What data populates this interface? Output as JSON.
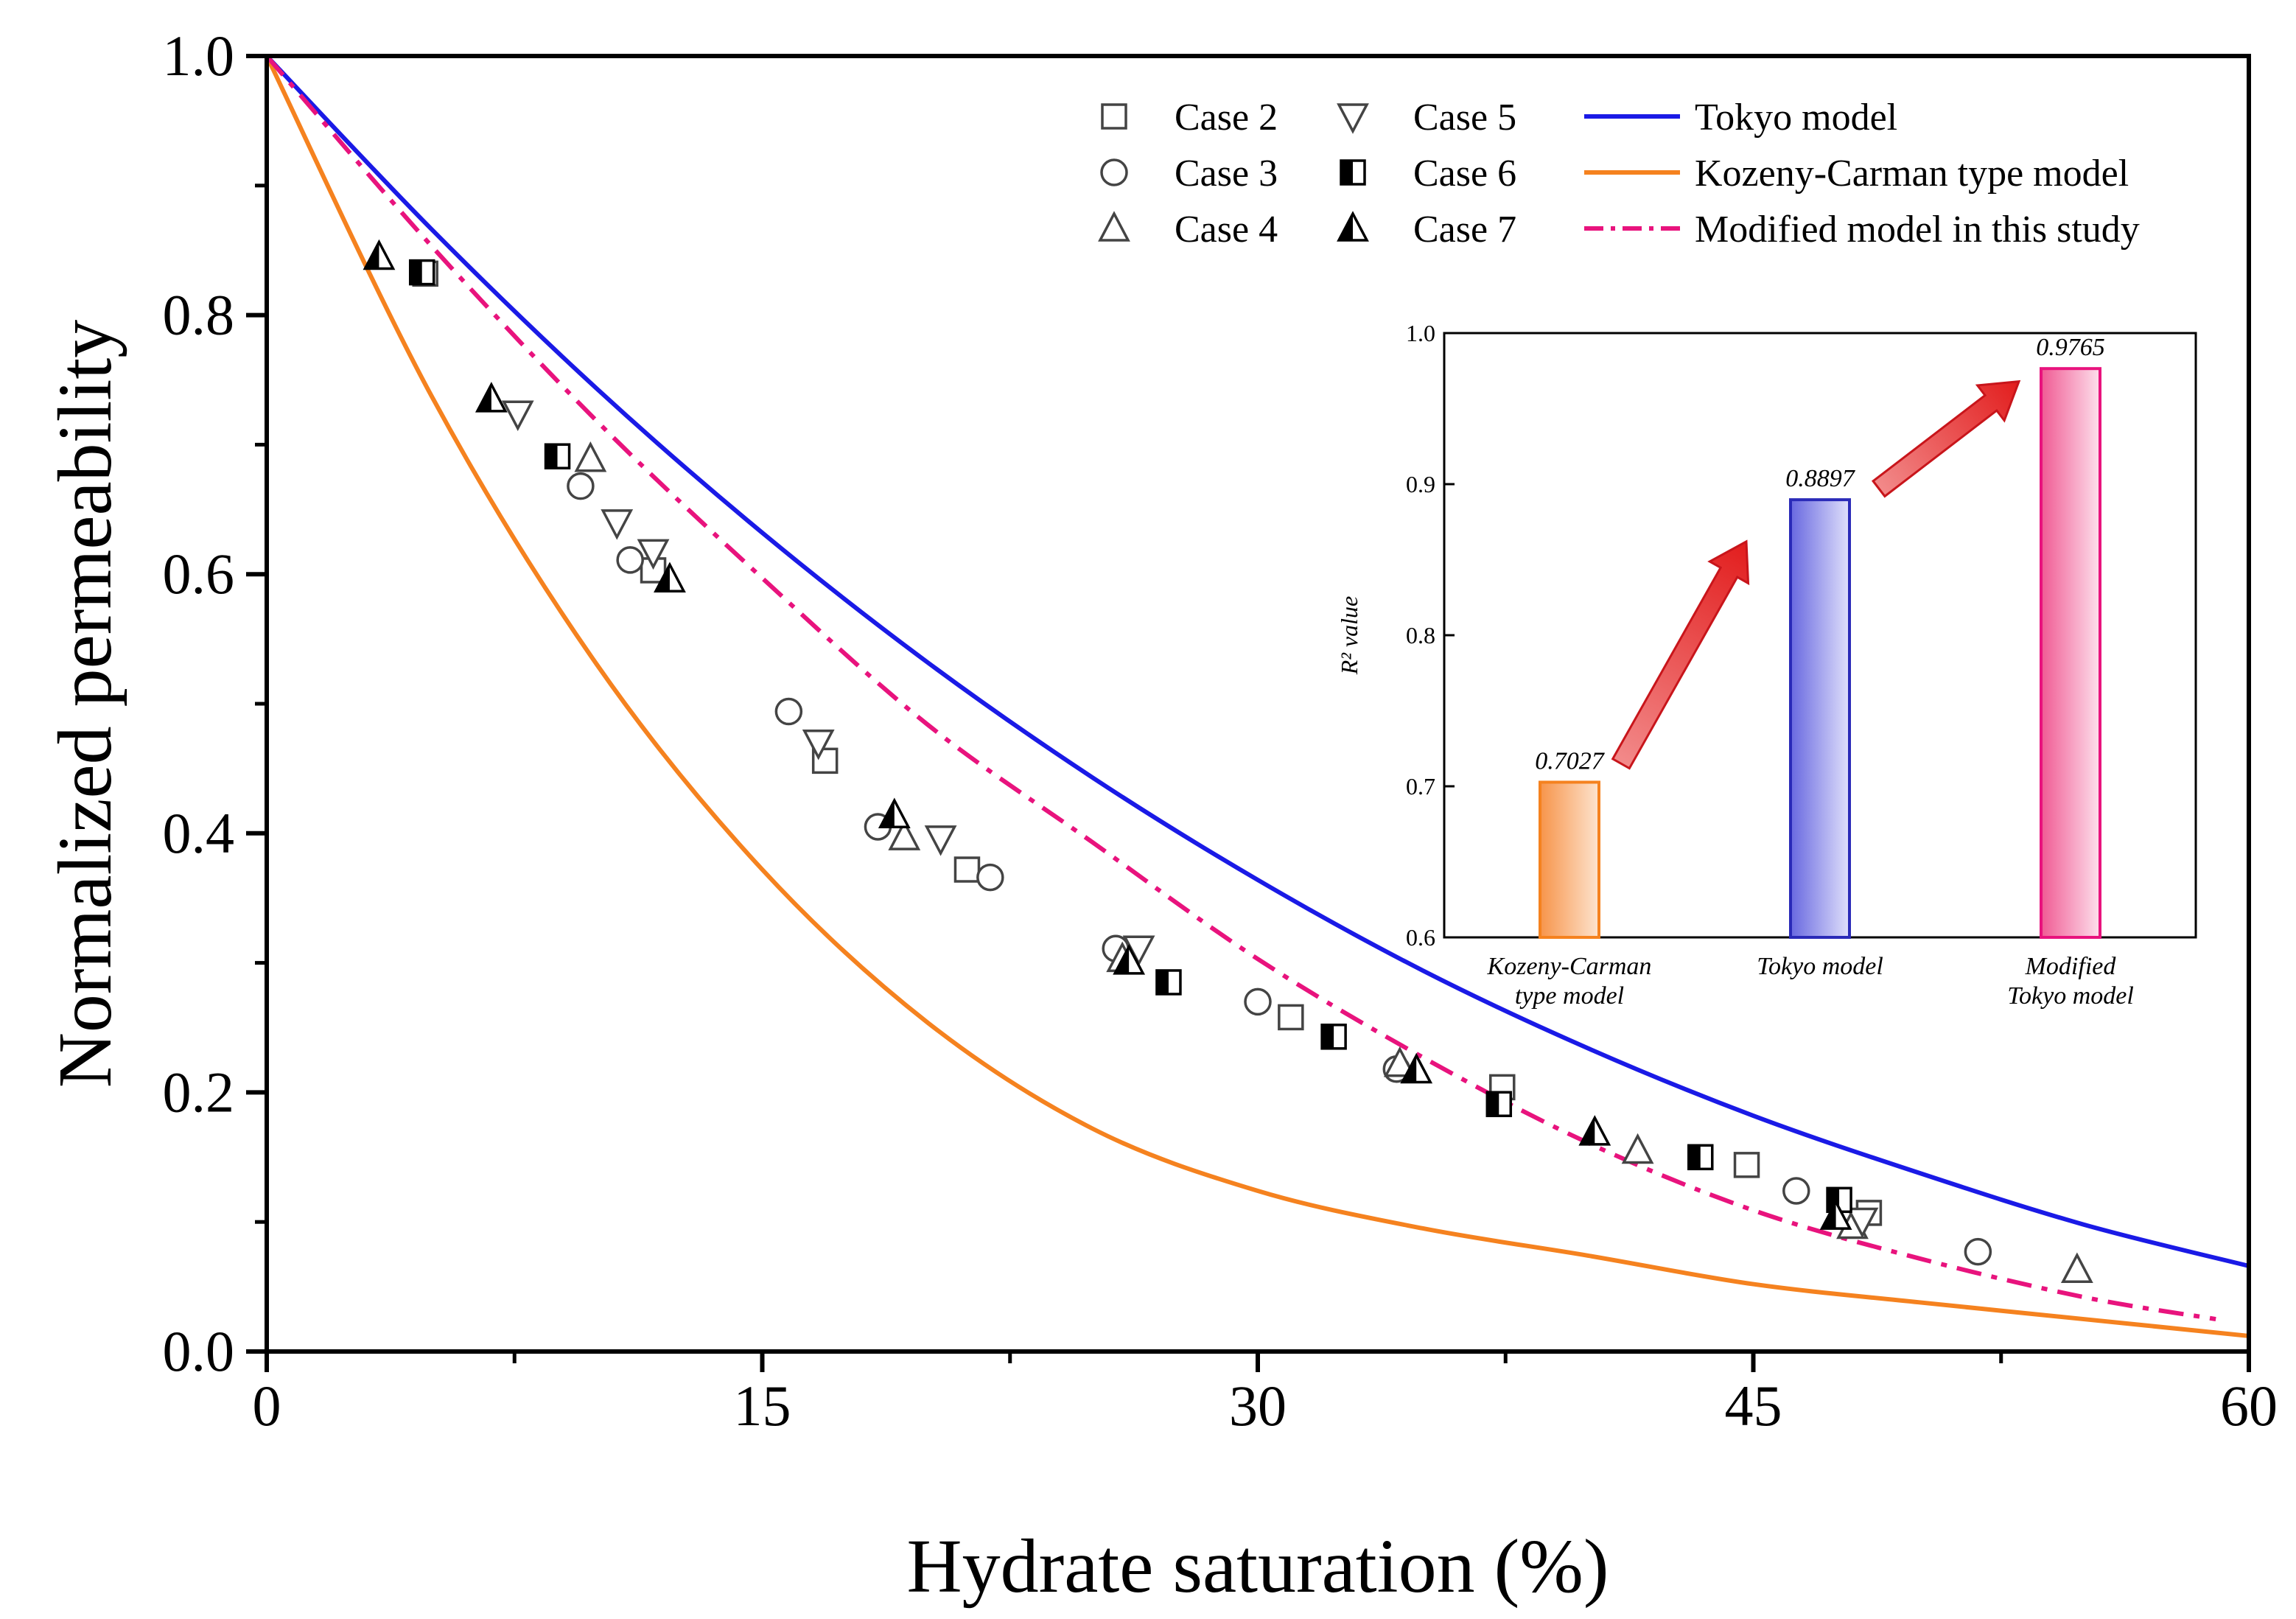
{
  "chart_data": [
    {
      "type": "scatter",
      "xlabel": "Hydrate saturation (%)",
      "ylabel": "Normalized permeability",
      "xlim": [
        0,
        60
      ],
      "ylim": [
        0,
        1.0
      ],
      "xticks": [
        "0",
        "15",
        "30",
        "45",
        "60"
      ],
      "yticks": [
        "0.0",
        "0.2",
        "0.4",
        "0.6",
        "0.8",
        "1.0"
      ],
      "series": [
        {
          "name": "Case 2",
          "marker": "square-open",
          "color": "#444444",
          "points": [
            [
              4.8,
              0.832
            ],
            [
              11.7,
              0.603
            ],
            [
              16.9,
              0.456
            ],
            [
              21.2,
              0.372
            ],
            [
              26.0,
              0.31
            ],
            [
              31.0,
              0.258
            ],
            [
              37.4,
              0.204
            ],
            [
              44.8,
              0.144
            ],
            [
              48.5,
              0.107
            ]
          ]
        },
        {
          "name": "Case 3",
          "marker": "circle-open",
          "color": "#444444",
          "points": [
            [
              9.5,
              0.668
            ],
            [
              11.0,
              0.611
            ],
            [
              15.8,
              0.494
            ],
            [
              18.5,
              0.405
            ],
            [
              21.9,
              0.366
            ],
            [
              25.7,
              0.311
            ],
            [
              30.0,
              0.27
            ],
            [
              34.2,
              0.218
            ],
            [
              46.3,
              0.124
            ],
            [
              51.8,
              0.077
            ]
          ]
        },
        {
          "name": "Case 4",
          "marker": "triangle-open",
          "color": "#444444",
          "points": [
            [
              9.8,
              0.689
            ],
            [
              19.3,
              0.397
            ],
            [
              25.9,
              0.303
            ],
            [
              34.3,
              0.222
            ],
            [
              41.5,
              0.155
            ],
            [
              48.0,
              0.097
            ],
            [
              54.8,
              0.063
            ]
          ]
        },
        {
          "name": "Case 5",
          "marker": "triangle-down-open",
          "color": "#444444",
          "points": [
            [
              7.6,
              0.724
            ],
            [
              10.6,
              0.64
            ],
            [
              11.7,
              0.617
            ],
            [
              16.7,
              0.47
            ],
            [
              20.4,
              0.396
            ],
            [
              26.4,
              0.311
            ],
            [
              48.3,
              0.101
            ]
          ]
        },
        {
          "name": "Case 6",
          "marker": "square-half",
          "color": "#000000",
          "points": [
            [
              4.7,
              0.833
            ],
            [
              8.8,
              0.691
            ],
            [
              27.3,
              0.285
            ],
            [
              32.3,
              0.243
            ],
            [
              37.3,
              0.191
            ],
            [
              43.4,
              0.15
            ],
            [
              47.6,
              0.117
            ]
          ]
        },
        {
          "name": "Case 7",
          "marker": "triangle-half",
          "color": "#000000",
          "points": [
            [
              3.4,
              0.845
            ],
            [
              6.8,
              0.735
            ],
            [
              12.2,
              0.596
            ],
            [
              19.0,
              0.414
            ],
            [
              26.1,
              0.301
            ],
            [
              34.8,
              0.217
            ],
            [
              40.2,
              0.169
            ],
            [
              47.5,
              0.104
            ]
          ]
        },
        {
          "name": "Tokyo model",
          "type": "line",
          "style": "solid",
          "color": "#1a1ae6",
          "x": [
            0,
            5,
            10,
            15,
            20,
            25,
            30,
            35,
            40,
            45,
            50,
            55,
            60
          ],
          "y": [
            1.0,
            0.866,
            0.743,
            0.632,
            0.532,
            0.443,
            0.364,
            0.294,
            0.234,
            0.182,
            0.138,
            0.098,
            0.066
          ]
        },
        {
          "name": "Kozeny-Carman type model",
          "type": "line",
          "style": "solid",
          "color": "#f5821f",
          "x": [
            0,
            5,
            10,
            15,
            20,
            25,
            30,
            35,
            40,
            45,
            50,
            55,
            60
          ],
          "y": [
            1.0,
            0.737,
            0.53,
            0.372,
            0.254,
            0.172,
            0.124,
            0.095,
            0.074,
            0.052,
            0.038,
            0.025,
            0.012
          ]
        },
        {
          "name": "Modified model in this study",
          "type": "line",
          "style": "dash-dot",
          "color": "#e8137d",
          "x": [
            0,
            5,
            10,
            15,
            20,
            25,
            30,
            35,
            40,
            45,
            50,
            55,
            59
          ],
          "y": [
            1.0,
            0.853,
            0.718,
            0.597,
            0.484,
            0.393,
            0.303,
            0.227,
            0.161,
            0.109,
            0.072,
            0.042,
            0.025
          ]
        }
      ],
      "legend": {
        "placement": "top-right",
        "entries": [
          "Case 2",
          "Case 5",
          "Tokyo model",
          "Case 3",
          "Case 6",
          "Kozeny-Carman type model",
          "Case 4",
          "Case 7",
          "Modified model in this study"
        ]
      }
    },
    {
      "type": "bar",
      "placement": "inset right",
      "ylabel": "R² value",
      "ylim": [
        0.6,
        1.0
      ],
      "yticks": [
        "0.6",
        "0.7",
        "0.8",
        "0.9",
        "1.0"
      ],
      "categories": [
        [
          "Kozeny-Carman",
          "type model"
        ],
        [
          "Tokyo model"
        ],
        [
          "Modified",
          "Tokyo model"
        ]
      ],
      "values": [
        0.7027,
        0.8897,
        0.9765
      ],
      "value_labels": [
        "0.7027",
        "0.8897",
        "0.9765"
      ],
      "colors": [
        "#f5821f",
        "#2a2ab8",
        "#e8137d"
      ]
    }
  ]
}
